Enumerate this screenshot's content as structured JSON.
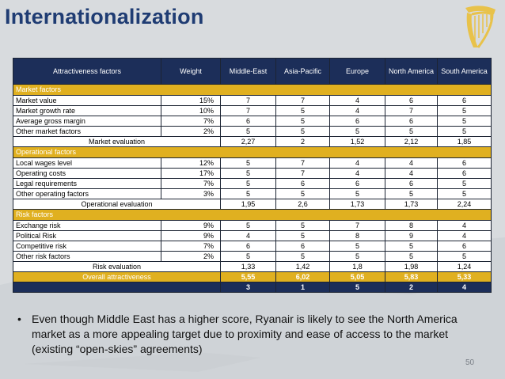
{
  "slide": {
    "title": "Internationalization",
    "page_number": "50",
    "bullet": "Even though Middle East has a higher score, Ryanair is likely to see the North America market as a more appealing target due to proximity and ease of access to the market (existing “open-skies” agreements)"
  },
  "table": {
    "headers": [
      "Attractiveness factors",
      "Weight",
      "Middle-East",
      "Asia-Pacific",
      "Europe",
      "North America",
      "South America"
    ],
    "market_section": "Market factors",
    "market_rows": [
      {
        "factor": "Market value",
        "weight": "15%",
        "values": [
          "7",
          "7",
          "4",
          "6",
          "6"
        ]
      },
      {
        "factor": "Market growth rate",
        "weight": "10%",
        "values": [
          "7",
          "5",
          "4",
          "7",
          "5"
        ]
      },
      {
        "factor": "Average gross margin",
        "weight": "7%",
        "values": [
          "6",
          "5",
          "6",
          "6",
          "5"
        ]
      },
      {
        "factor": "Other market factors",
        "weight": "2%",
        "values": [
          "5",
          "5",
          "5",
          "5",
          "5"
        ]
      }
    ],
    "market_eval": {
      "label": "Market evaluation",
      "values": [
        "2,27",
        "2",
        "1,52",
        "2,12",
        "1,85"
      ]
    },
    "operational_section": "Operational factors",
    "operational_rows": [
      {
        "factor": "Local wages level",
        "weight": "12%",
        "values": [
          "5",
          "7",
          "4",
          "4",
          "6"
        ]
      },
      {
        "factor": "Operating costs",
        "weight": "17%",
        "values": [
          "5",
          "7",
          "4",
          "4",
          "6"
        ]
      },
      {
        "factor": "Legal requirements",
        "weight": "7%",
        "values": [
          "5",
          "6",
          "6",
          "6",
          "5"
        ]
      },
      {
        "factor": "Other operating factors",
        "weight": "3%",
        "values": [
          "5",
          "5",
          "5",
          "5",
          "5"
        ]
      }
    ],
    "operational_eval": {
      "label": "Operational evaluation",
      "values": [
        "1,95",
        "2,6",
        "1,73",
        "1,73",
        "2,24"
      ]
    },
    "risk_section": "Risk factors",
    "risk_rows": [
      {
        "factor": "Exchange risk",
        "weight": "9%",
        "values": [
          "5",
          "5",
          "7",
          "8",
          "4"
        ]
      },
      {
        "factor": "Political Risk",
        "weight": "9%",
        "values": [
          "4",
          "5",
          "8",
          "9",
          "4"
        ]
      },
      {
        "factor": "Competitive risk",
        "weight": "7%",
        "values": [
          "6",
          "6",
          "5",
          "5",
          "6"
        ]
      },
      {
        "factor": "Other risk factors",
        "weight": "2%",
        "values": [
          "5",
          "5",
          "5",
          "5",
          "5"
        ]
      }
    ],
    "risk_eval": {
      "label": "Risk evaluation",
      "values": [
        "1,33",
        "1,42",
        "1,8",
        "1,98",
        "1,24"
      ]
    },
    "overall": {
      "label": "Overall attractiveness",
      "values": [
        "5,55",
        "6,02",
        "5,05",
        "5,83",
        "5,33"
      ]
    },
    "ranks": [
      "3",
      "1",
      "5",
      "2",
      "4"
    ]
  },
  "colors": {
    "title": "#1f3c73",
    "header_bg": "#1c2e59",
    "section_bg": "#e0b020",
    "slide_bg": "#d7dadd"
  },
  "icons": {
    "logo": "harp-logo-icon"
  }
}
